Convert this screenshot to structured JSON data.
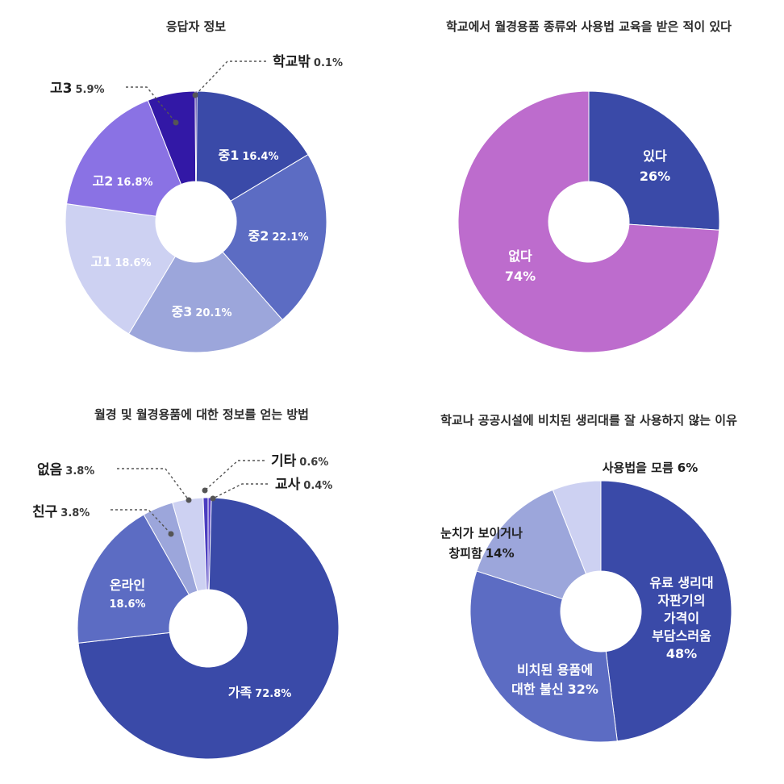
{
  "chart_data": [
    {
      "type": "pie",
      "title": "응답자 정보",
      "slices": [
        {
          "label": "중1",
          "value": 16.4,
          "value_text": "16.4%",
          "color": "#3a4aa8"
        },
        {
          "label": "중2",
          "value": 22.1,
          "value_text": "22.1%",
          "color": "#5c6cc3"
        },
        {
          "label": "중3",
          "value": 20.1,
          "value_text": "20.1%",
          "color": "#9ca6db"
        },
        {
          "label": "고1",
          "value": 18.6,
          "value_text": "18.6%",
          "color": "#cdd1f2"
        },
        {
          "label": "고2",
          "value": 16.8,
          "value_text": "16.8%",
          "color": "#8a72e4"
        },
        {
          "label": "고3",
          "value": 5.9,
          "value_text": "5.9%",
          "color": "#3218a6"
        },
        {
          "label": "학교밖",
          "value": 0.1,
          "value_text": "0.1%",
          "color": "#2a1690"
        }
      ]
    },
    {
      "type": "pie",
      "title": "학교에서 월경용품 종류와 사용법 교육을 받은 적이 있다",
      "slices": [
        {
          "label": "있다",
          "value": 26,
          "value_text": "26%",
          "color": "#3a4aa8"
        },
        {
          "label": "없다",
          "value": 74,
          "value_text": "74%",
          "color": "#bd6ccd"
        }
      ]
    },
    {
      "type": "pie",
      "title": "월경 및 월경용품에 대한 정보를 얻는 방법",
      "slices": [
        {
          "label": "교사",
          "value": 0.4,
          "value_text": "0.4%",
          "color": "#5a40c8"
        },
        {
          "label": "가족",
          "value": 72.8,
          "value_text": "72.8%",
          "color": "#3a4aa8"
        },
        {
          "label": "온라인",
          "value": 18.6,
          "value_text": "18.6%",
          "color": "#5c6cc3"
        },
        {
          "label": "친구",
          "value": 3.8,
          "value_text": "3.8%",
          "color": "#9ca6db"
        },
        {
          "label": "없음",
          "value": 3.8,
          "value_text": "3.8%",
          "color": "#cdd1f2"
        },
        {
          "label": "기타",
          "value": 0.6,
          "value_text": "0.6%",
          "color": "#4a3cc0"
        }
      ]
    },
    {
      "type": "pie",
      "title": "학교나 공공시설에 비치된 생리대를 잘 사용하지 않는 이유",
      "slices": [
        {
          "label": "유료 생리대 자판기의 가격이 부담스러움",
          "value": 48,
          "value_text": "48%",
          "label_lines": [
            "유료 생리대",
            "자판기의",
            "가격이",
            "부담스러움"
          ],
          "color": "#3a4aa8"
        },
        {
          "label": "비치된 용품에 대한 불신",
          "value": 32,
          "value_text": "32%",
          "label_lines": [
            "비치된 용품에",
            "대한 불신"
          ],
          "color": "#5c6cc3"
        },
        {
          "label": "눈치가 보이거나 창피함",
          "value": 14,
          "value_text": "14%",
          "label_lines": [
            "눈치가 보이거나",
            "창피함"
          ],
          "color": "#9ca6db"
        },
        {
          "label": "사용법을 모름",
          "value": 6,
          "value_text": "6%",
          "color": "#cdd1f2"
        }
      ]
    }
  ]
}
